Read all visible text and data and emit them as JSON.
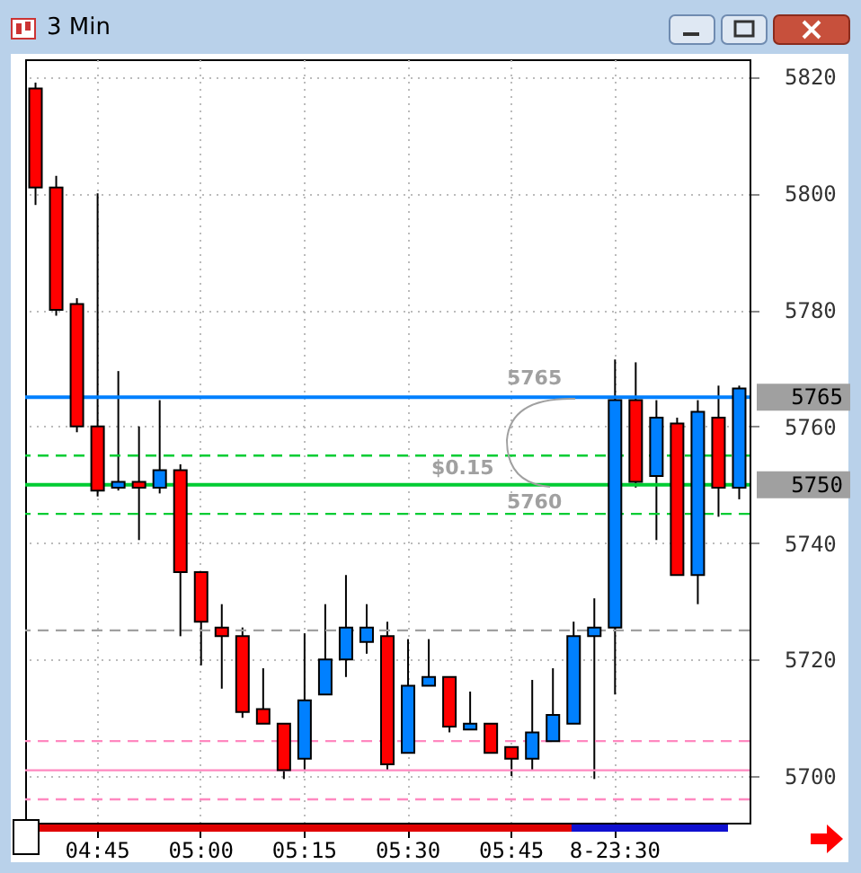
{
  "chart_data": {
    "type": "candlestick",
    "title": "3 Min",
    "categories": [
      null,
      null,
      null,
      "04:45",
      null,
      null,
      null,
      null,
      "05:00",
      null,
      null,
      null,
      null,
      "05:15",
      null,
      null,
      null,
      null,
      "05:30",
      null,
      null,
      null,
      null,
      "05:45",
      null,
      null,
      null,
      null,
      "8-23:30",
      null,
      null,
      null,
      null,
      null,
      null
    ],
    "ohlc": [
      [
        5818,
        5819,
        5798,
        5801
      ],
      [
        5801,
        5803,
        5779,
        5780
      ],
      [
        5781,
        5782,
        5759,
        5760
      ],
      [
        5760,
        5800,
        5748,
        5749
      ],
      [
        5749.5,
        5769.5,
        5749,
        5750.5
      ],
      [
        5750.5,
        5760,
        5740.5,
        5749.5
      ],
      [
        5749.5,
        5764.5,
        5748.5,
        5752.5
      ],
      [
        5752.5,
        5753.5,
        5724,
        5735
      ],
      [
        5735,
        5735,
        5719,
        5726.5
      ],
      [
        5725.5,
        5729.5,
        5715,
        5724
      ],
      [
        5724,
        5725.5,
        5710,
        5711
      ],
      [
        5711.5,
        5718.5,
        5709,
        5709
      ],
      [
        5709,
        5709,
        5699.5,
        5701
      ],
      [
        5703,
        5724.5,
        5701,
        5713
      ],
      [
        5714,
        5729.5,
        5714,
        5720
      ],
      [
        5720,
        5734.5,
        5717,
        5725.5
      ],
      [
        5723,
        5729.5,
        5721,
        5725.5
      ],
      [
        5724,
        5726.5,
        5701,
        5702
      ],
      [
        5704,
        5723.5,
        5704,
        5715.5
      ],
      [
        5715.5,
        5723.5,
        5715.5,
        5717
      ],
      [
        5717,
        5717,
        5707.5,
        5708.5
      ],
      [
        5708,
        5714.5,
        5708,
        5709
      ],
      [
        5709,
        5709,
        5704,
        5704
      ],
      [
        5705,
        5705,
        5700,
        5703
      ],
      [
        5703,
        5716.5,
        5701,
        5707.5
      ],
      [
        5706,
        5718.5,
        5706,
        5710.5
      ],
      [
        5709,
        5726.5,
        5709,
        5724
      ],
      [
        5724,
        5730.5,
        5699.5,
        5725.5
      ],
      [
        5725.5,
        5771.5,
        5714,
        5764.5
      ],
      [
        5764.5,
        5771,
        5749.5,
        5750.5
      ],
      [
        5751.5,
        5764.5,
        5740.5,
        5761.5
      ],
      [
        5760.5,
        5761.5,
        5734.5,
        5734.5
      ],
      [
        5734.5,
        5764.5,
        5729.5,
        5762.5
      ],
      [
        5761.5,
        5767,
        5744.5,
        5749.5
      ],
      [
        5749.5,
        5767,
        5747.5,
        5766.5
      ]
    ],
    "colors": [
      "#ff0000",
      "#ff0000",
      "#ff0000",
      "#ff0000",
      "#0080ff",
      "#ff0000",
      "#0080ff",
      "#ff0000",
      "#ff0000",
      "#ff0000",
      "#ff0000",
      "#ff0000",
      "#ff0000",
      "#0080ff",
      "#0080ff",
      "#0080ff",
      "#0080ff",
      "#ff0000",
      "#0080ff",
      "#0080ff",
      "#ff0000",
      "#0080ff",
      "#ff0000",
      "#ff0000",
      "#0080ff",
      "#0080ff",
      "#0080ff",
      "#0080ff",
      "#0080ff",
      "#ff0000",
      "#0080ff",
      "#ff0000",
      "#0080ff",
      "#ff0000",
      "#0080ff"
    ],
    "ylim": [
      5692,
      5823
    ],
    "yticks": [
      5700,
      5720,
      5740,
      5760,
      5780,
      5800,
      5820
    ],
    "grid": true,
    "ref_lines": [
      {
        "axis": "y",
        "value": 5765,
        "label": "5765",
        "color": "#0080ff",
        "line_style": "solid"
      },
      {
        "axis": "y",
        "value": 5750,
        "label": "5750",
        "color": "#00cc33",
        "line_style": "solid"
      },
      {
        "axis": "y",
        "value": 5755,
        "color": "#00cc33",
        "line_style": "dashed"
      },
      {
        "axis": "y",
        "value": 5745,
        "color": "#00cc33",
        "line_style": "dashed"
      },
      {
        "axis": "y",
        "value": 5725,
        "color": "#a0a0a0",
        "line_style": "dashed"
      },
      {
        "axis": "y",
        "value": 5706,
        "color": "#ff88c0",
        "line_style": "dashed"
      },
      {
        "axis": "y",
        "value": 5701,
        "color": "#ff88c0",
        "line_style": "solid"
      },
      {
        "axis": "y",
        "value": 5696,
        "color": "#ff88c0",
        "line_style": "dashed"
      }
    ],
    "annotations": [
      {
        "text": "5765",
        "y": 5765
      },
      {
        "text": "$0.15",
        "y": 5750
      },
      {
        "text": "5760",
        "y": 5750
      }
    ]
  }
}
